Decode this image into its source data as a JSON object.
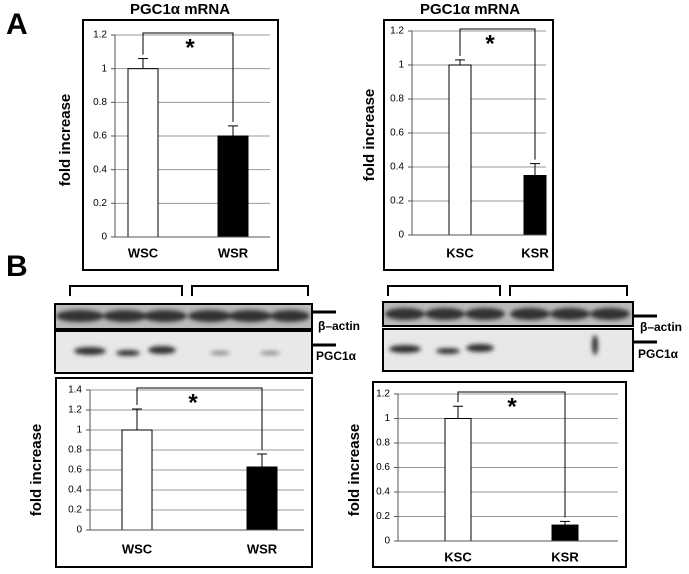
{
  "panels": [
    "A",
    "B"
  ],
  "blot_labels": [
    [
      "β–actin",
      "PGC1α"
    ],
    [
      "β–actin",
      "PGC1α"
    ]
  ],
  "chart_data": [
    {
      "type": "bar",
      "title": "PGC1α mRNA",
      "y_label": "fold increase",
      "annotation": "*",
      "categories": [
        "WSC",
        "WSR"
      ],
      "values": [
        1.0,
        0.6
      ],
      "errors": [
        0.06,
        0.06
      ],
      "colors": [
        "#ffffff",
        "#000000"
      ],
      "ylim": [
        0,
        1.2
      ],
      "yticks": [
        0,
        0.2,
        0.4,
        0.6,
        0.8,
        1,
        1.2
      ],
      "grid": true
    },
    {
      "type": "bar",
      "title": "PGC1α mRNA",
      "y_label": "fold increase",
      "annotation": "*",
      "categories": [
        "KSC",
        "KSR"
      ],
      "values": [
        1.0,
        0.35
      ],
      "errors": [
        0.03,
        0.07
      ],
      "colors": [
        "#ffffff",
        "#000000"
      ],
      "ylim": [
        0,
        1.2
      ],
      "yticks": [
        0,
        0.2,
        0.4,
        0.6,
        0.8,
        1,
        1.2
      ],
      "grid": true
    },
    {
      "type": "bar",
      "y_label": "fold increase",
      "annotation": "*",
      "categories": [
        "WSC",
        "WSR"
      ],
      "values": [
        1.0,
        0.63
      ],
      "errors": [
        0.21,
        0.13
      ],
      "colors": [
        "#ffffff",
        "#000000"
      ],
      "ylim": [
        0,
        1.4
      ],
      "yticks": [
        0,
        0.2,
        0.4,
        0.6,
        0.8,
        1,
        1.2,
        1.4
      ],
      "grid": true
    },
    {
      "type": "bar",
      "y_label": "fold increase",
      "annotation": "*",
      "categories": [
        "KSC",
        "KSR"
      ],
      "values": [
        1.0,
        0.13
      ],
      "errors": [
        0.1,
        0.03
      ],
      "colors": [
        "#ffffff",
        "#000000"
      ],
      "ylim": [
        0,
        1.2
      ],
      "yticks": [
        0,
        0.2,
        0.4,
        0.6,
        0.8,
        1,
        1.2
      ],
      "grid": true
    }
  ]
}
